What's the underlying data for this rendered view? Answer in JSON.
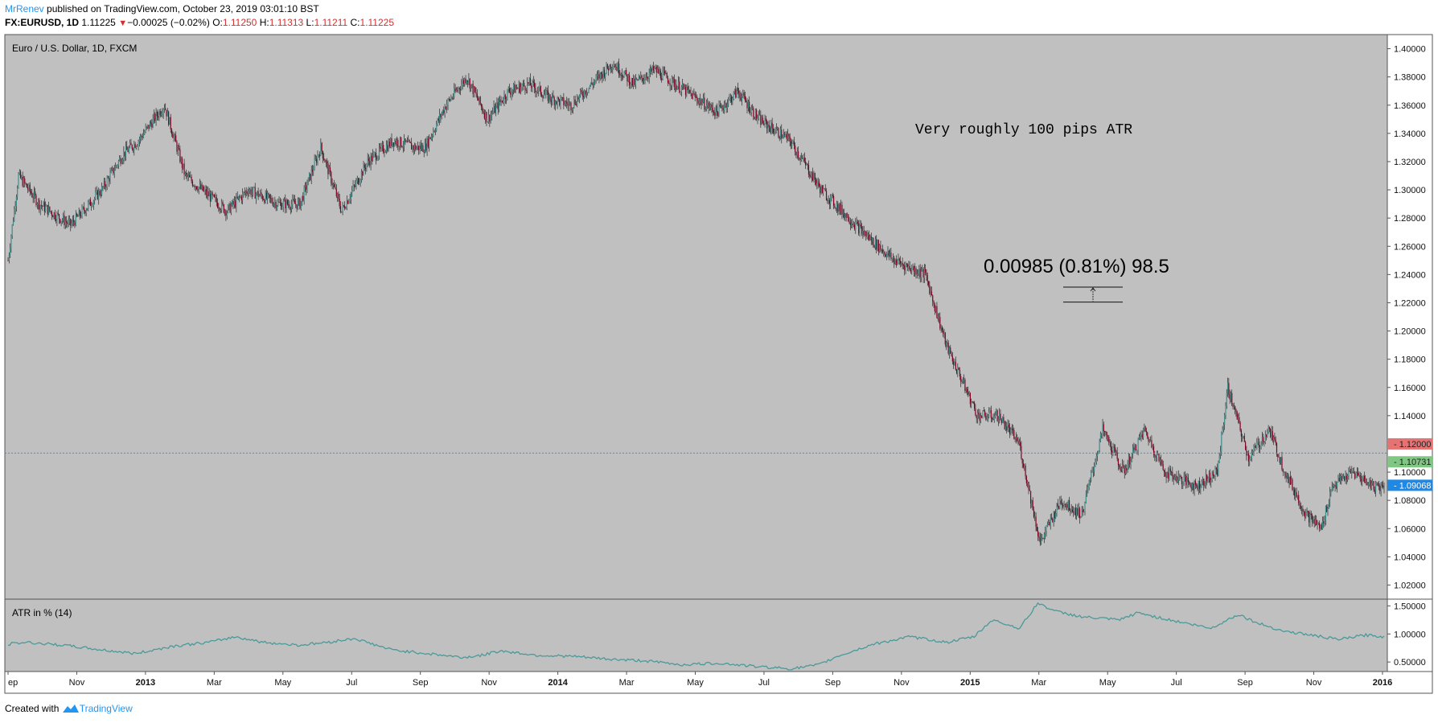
{
  "header": {
    "author": "MrRenev",
    "published": "published on TradingView.com, October 23, 2019 03:01:10 BST",
    "symbol": "FX:EURUSD, 1D",
    "last": "1.11225",
    "change": "−0.00025 (−0.02%)",
    "open_label": "O:",
    "open": "1.11250",
    "high_label": "H:",
    "high": "1.11313",
    "low_label": "L:",
    "low": "1.11211",
    "close_label": "C:",
    "close": "1.11225"
  },
  "footer": {
    "created_with": "Created with",
    "brand": "TradingView"
  },
  "colors": {
    "pane_bg": "#c0c0c0",
    "atr_line": "#4a9a99",
    "candle_up": "#3f8f8c",
    "candle_down": "#800020",
    "hline": "#2196f3",
    "badge_red": "#e57373",
    "badge_green": "#81c784",
    "badge_blue": "#1e88e5"
  },
  "chart_data": [
    {
      "type": "candlestick",
      "title": "Euro / U.S. Dollar, 1D, FXCM",
      "x_ticks": [
        "ep",
        "Nov",
        "2013",
        "Mar",
        "May",
        "Jul",
        "Sep",
        "Nov",
        "2014",
        "Mar",
        "May",
        "Jul",
        "Sep",
        "Nov",
        "2015",
        "Mar",
        "May",
        "Jul",
        "Sep",
        "Nov",
        "2016"
      ],
      "x_tick_index": [
        0,
        60,
        120,
        180,
        240,
        300,
        360,
        420,
        480,
        540,
        600,
        660,
        720,
        780,
        840,
        900,
        960,
        1020,
        1080,
        1140,
        1200
      ],
      "y_ticks": [
        "1.02000",
        "1.04000",
        "1.06000",
        "1.08000",
        "1.10000",
        "1.12000",
        "1.14000",
        "1.16000",
        "1.18000",
        "1.20000",
        "1.22000",
        "1.24000",
        "1.26000",
        "1.28000",
        "1.30000",
        "1.32000",
        "1.34000",
        "1.36000",
        "1.38000",
        "1.40000"
      ],
      "ylim": [
        1.01,
        1.41
      ],
      "close_path": [
        [
          0,
          1.25
        ],
        [
          10,
          1.31
        ],
        [
          30,
          1.29
        ],
        [
          60,
          1.275
        ],
        [
          90,
          1.3
        ],
        [
          110,
          1.325
        ],
        [
          125,
          1.335
        ],
        [
          150,
          1.36
        ],
        [
          170,
          1.31
        ],
        [
          210,
          1.285
        ],
        [
          230,
          1.3
        ],
        [
          260,
          1.29
        ],
        [
          280,
          1.29
        ],
        [
          300,
          1.33
        ],
        [
          320,
          1.285
        ],
        [
          345,
          1.32
        ],
        [
          370,
          1.335
        ],
        [
          390,
          1.33
        ],
        [
          400,
          1.33
        ],
        [
          420,
          1.36
        ],
        [
          440,
          1.38
        ],
        [
          460,
          1.35
        ],
        [
          480,
          1.37
        ],
        [
          500,
          1.375
        ],
        [
          520,
          1.365
        ],
        [
          540,
          1.36
        ],
        [
          560,
          1.375
        ],
        [
          580,
          1.39
        ],
        [
          600,
          1.375
        ],
        [
          620,
          1.385
        ],
        [
          650,
          1.37
        ],
        [
          680,
          1.355
        ],
        [
          700,
          1.37
        ],
        [
          720,
          1.35
        ],
        [
          750,
          1.335
        ],
        [
          780,
          1.3
        ],
        [
          820,
          1.27
        ],
        [
          850,
          1.25
        ],
        [
          880,
          1.24
        ],
        [
          900,
          1.19
        ],
        [
          930,
          1.14
        ],
        [
          950,
          1.14
        ],
        [
          970,
          1.12
        ],
        [
          990,
          1.05
        ],
        [
          1010,
          1.08
        ],
        [
          1030,
          1.07
        ],
        [
          1050,
          1.13
        ],
        [
          1070,
          1.1
        ],
        [
          1090,
          1.13
        ],
        [
          1110,
          1.1
        ],
        [
          1140,
          1.09
        ],
        [
          1160,
          1.1
        ],
        [
          1170,
          1.16
        ],
        [
          1190,
          1.11
        ],
        [
          1210,
          1.13
        ],
        [
          1225,
          1.1
        ],
        [
          1245,
          1.07
        ],
        [
          1260,
          1.06
        ],
        [
          1270,
          1.09
        ],
        [
          1290,
          1.1
        ],
        [
          1310,
          1.09
        ]
      ],
      "annotations": [
        {
          "text": "Very roughly 100 pips ATR"
        },
        {
          "text": "0.00985 (0.81%) 98.5",
          "range": [
            1.2205,
            1.2311
          ]
        }
      ],
      "horizontal_line": 1.1135,
      "price_badges": [
        {
          "label": "1.12000",
          "value": 1.12,
          "color": "#e57373"
        },
        {
          "label": "1.10731",
          "value": 1.10731,
          "color": "#81c784"
        },
        {
          "label": "1.09068",
          "value": 1.09068,
          "color": "#1e88e5"
        }
      ]
    },
    {
      "type": "line",
      "title": "ATR in % (14)",
      "y_ticks": [
        "0.50000",
        "1.00000",
        "1.50000"
      ],
      "ylim": [
        0.33,
        1.62
      ],
      "series": [
        {
          "values_path": [
            [
              0,
              0.82
            ],
            [
              20,
              0.85
            ],
            [
              60,
              0.8
            ],
            [
              100,
              0.72
            ],
            [
              140,
              0.65
            ],
            [
              180,
              0.78
            ],
            [
              220,
              0.85
            ],
            [
              250,
              0.95
            ],
            [
              280,
              0.85
            ],
            [
              320,
              0.8
            ],
            [
              350,
              0.85
            ],
            [
              380,
              0.92
            ],
            [
              420,
              0.72
            ],
            [
              460,
              0.65
            ],
            [
              500,
              0.58
            ],
            [
              520,
              0.62
            ],
            [
              540,
              0.7
            ],
            [
              580,
              0.62
            ],
            [
              620,
              0.6
            ],
            [
              660,
              0.55
            ],
            [
              700,
              0.52
            ],
            [
              740,
              0.45
            ],
            [
              780,
              0.48
            ],
            [
              820,
              0.42
            ],
            [
              860,
              0.38
            ],
            [
              890,
              0.45
            ],
            [
              910,
              0.6
            ],
            [
              950,
              0.82
            ],
            [
              990,
              0.95
            ],
            [
              1030,
              0.85
            ],
            [
              1060,
              0.95
            ],
            [
              1080,
              1.25
            ],
            [
              1110,
              1.1
            ],
            [
              1130,
              1.55
            ],
            [
              1150,
              1.4
            ],
            [
              1180,
              1.3
            ],
            [
              1220,
              1.25
            ],
            [
              1240,
              1.38
            ],
            [
              1260,
              1.3
            ],
            [
              1290,
              1.2
            ],
            [
              1320,
              1.1
            ],
            [
              1350,
              1.35
            ],
            [
              1370,
              1.2
            ],
            [
              1400,
              1.05
            ],
            [
              1430,
              0.98
            ],
            [
              1460,
              0.9
            ],
            [
              1490,
              0.98
            ],
            [
              1510,
              0.95
            ]
          ]
        }
      ]
    }
  ]
}
